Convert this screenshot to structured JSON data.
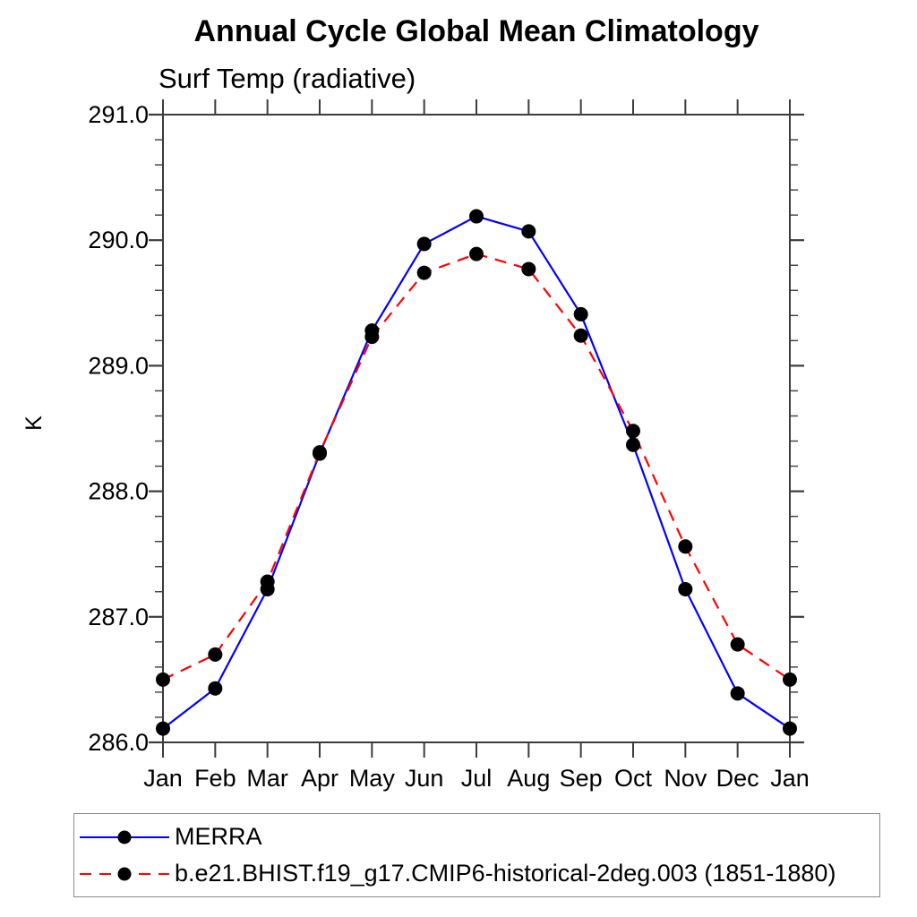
{
  "title": "Annual Cycle Global Mean Climatology",
  "chart_data": {
    "type": "line",
    "title": "Annual Cycle Global Mean Climatology",
    "subtitle": "Surf Temp (radiative)",
    "xlabel": "",
    "ylabel": "K",
    "categories": [
      "Jan",
      "Feb",
      "Mar",
      "Apr",
      "May",
      "Jun",
      "Jul",
      "Aug",
      "Sep",
      "Oct",
      "Nov",
      "Dec",
      "Jan"
    ],
    "ylim": [
      286.0,
      291.0
    ],
    "y_ticks": [
      {
        "value": 286.0,
        "label": "286.0"
      },
      {
        "value": 287.0,
        "label": "287.0"
      },
      {
        "value": 288.0,
        "label": "288.0"
      },
      {
        "value": 289.0,
        "label": "289.0"
      },
      {
        "value": 290.0,
        "label": "290.0"
      },
      {
        "value": 291.0,
        "label": "291.0"
      }
    ],
    "y_minor_step": 0.2,
    "grid": false,
    "legend_position": "bottom-left-box",
    "series": [
      {
        "name": "MERRA",
        "color": "#0000ff",
        "line_style": "solid",
        "marker": "filled-circle",
        "marker_color": "#000000",
        "values": [
          286.11,
          286.43,
          287.22,
          288.3,
          289.28,
          289.97,
          290.19,
          290.07,
          289.41,
          288.37,
          287.22,
          286.39,
          286.11
        ]
      },
      {
        "name": "b.e21.BHIST.f19_g17.CMIP6-historical-2deg.003 (1851-1880)",
        "color": "#ff0000",
        "line_style": "dashed",
        "marker": "filled-circle",
        "marker_color": "#000000",
        "values": [
          286.5,
          286.7,
          287.28,
          288.31,
          289.23,
          289.74,
          289.89,
          289.77,
          289.24,
          288.48,
          287.56,
          286.78,
          286.5
        ]
      }
    ]
  },
  "colors": {
    "axis": "#3c3c3c",
    "text": "#000000",
    "background": "#ffffff",
    "legend_border": "#8a8a8a"
  }
}
